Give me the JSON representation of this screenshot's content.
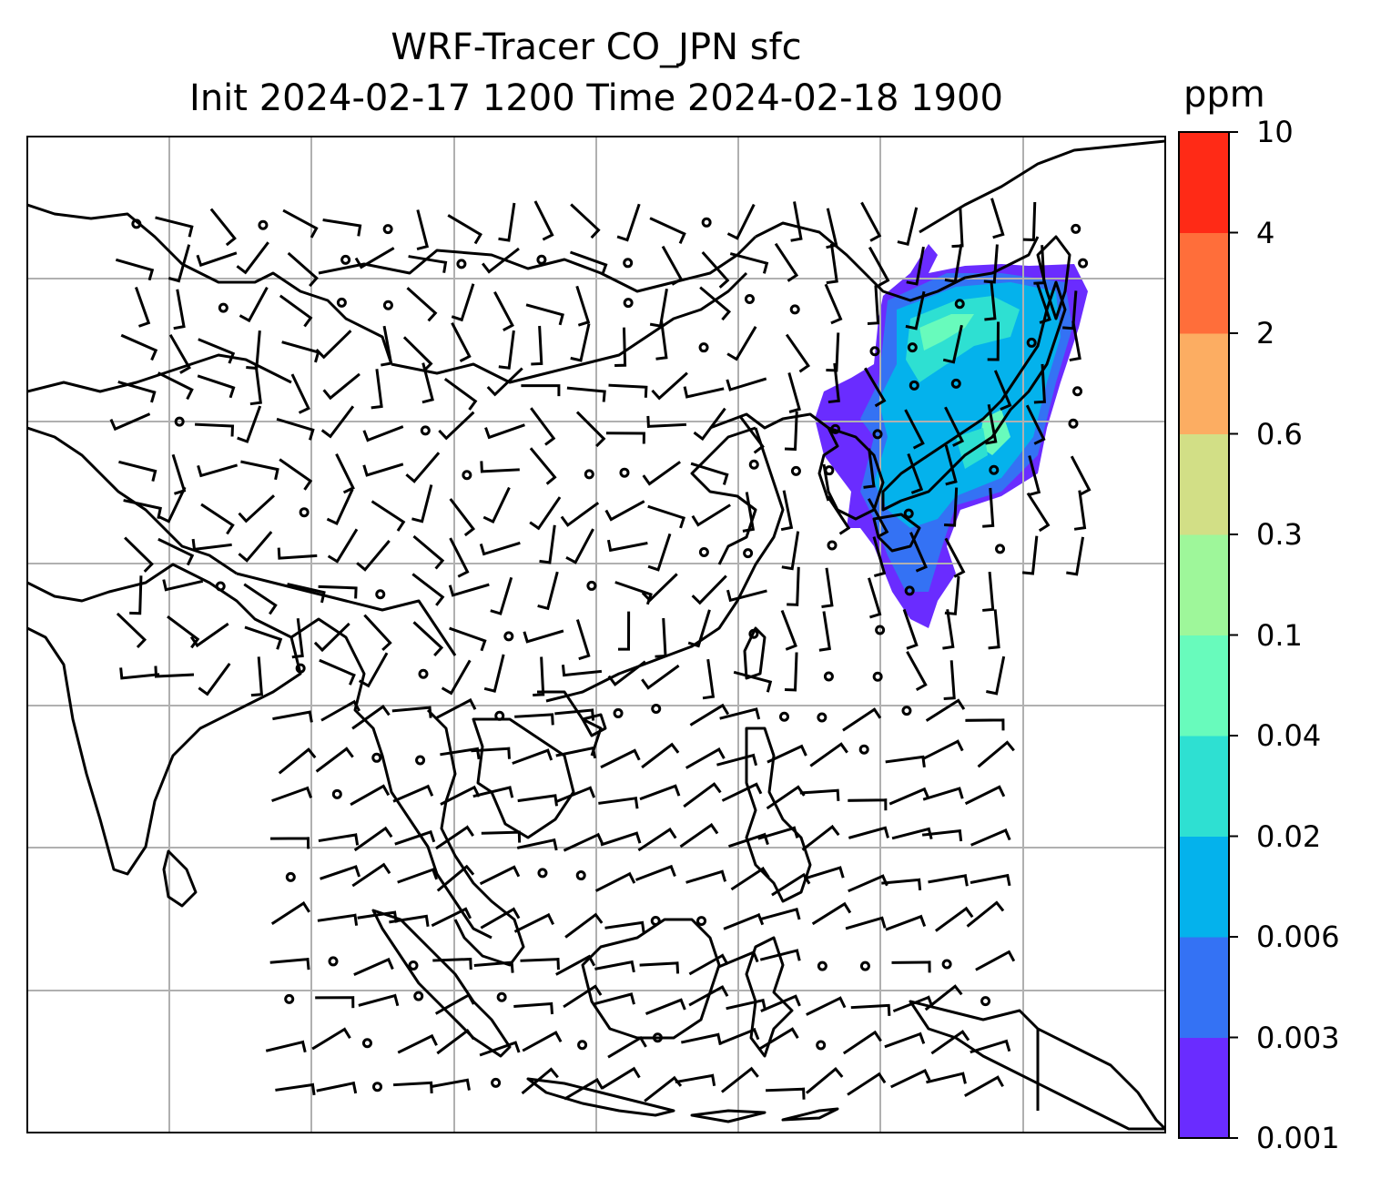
{
  "title": {
    "line1": "WRF-Tracer CO_JPN sfc",
    "line2": "Init 2024-02-17 1200 Time 2024-02-18 1900"
  },
  "colorbar": {
    "unit": "ppm",
    "levels": [
      "0.001",
      "0.003",
      "0.006",
      "0.02",
      "0.04",
      "0.1",
      "0.3",
      "0.6",
      "2",
      "4",
      "10"
    ],
    "colors": [
      "#6a2cff",
      "#3472f4",
      "#04b2ec",
      "#2ee0d2",
      "#68fbbc",
      "#9ef79a",
      "#d2df86",
      "#fcad62",
      "#ff6e3a",
      "#ff2a16"
    ]
  },
  "map": {
    "features": [
      "coastlines",
      "gridlines",
      "wind-barbs",
      "tracer-plume"
    ],
    "line_color": "#000000",
    "grid_color": "#b0b0b0"
  }
}
